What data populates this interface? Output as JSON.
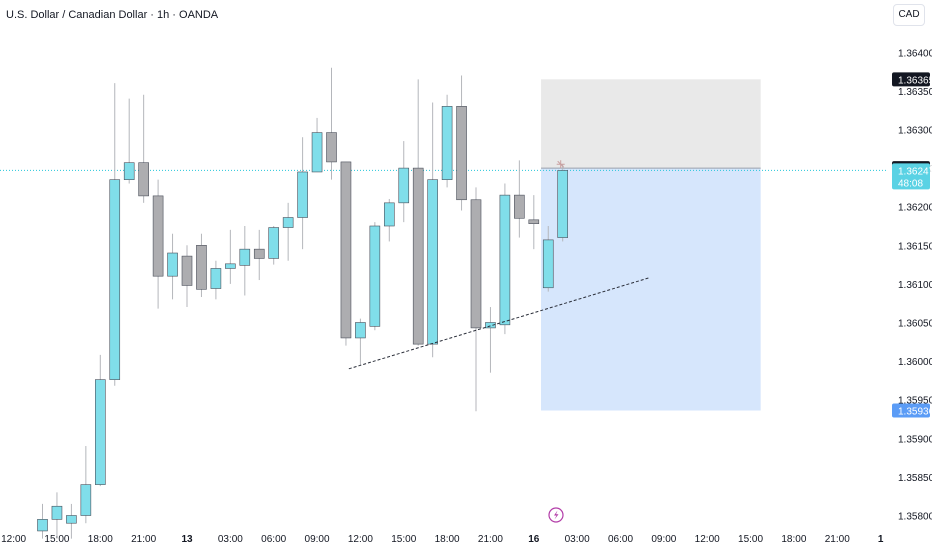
{
  "header": {
    "title": "U.S. Dollar / Canadian Dollar · 1h · OANDA",
    "currency_button": "CAD"
  },
  "chart_data": {
    "type": "candlestick",
    "ylim": [
      1.35788,
      1.36488
    ],
    "y_ticks": [
      "1.35800",
      "1.35850",
      "1.35900",
      "1.35950",
      "1.36000",
      "1.36050",
      "1.36100",
      "1.36150",
      "1.36200",
      "1.36250",
      "1.36300",
      "1.36350",
      "1.36400"
    ],
    "x_tick_labels": [
      {
        "label": "12:00",
        "slot": -2
      },
      {
        "label": "15:00",
        "slot": 1
      },
      {
        "label": "18:00",
        "slot": 4
      },
      {
        "label": "21:00",
        "slot": 7
      },
      {
        "label": "13",
        "slot": 10
      },
      {
        "label": "03:00",
        "slot": 13
      },
      {
        "label": "06:00",
        "slot": 16
      },
      {
        "label": "09:00",
        "slot": 19
      },
      {
        "label": "12:00",
        "slot": 22
      },
      {
        "label": "15:00",
        "slot": 25
      },
      {
        "label": "18:00",
        "slot": 28
      },
      {
        "label": "21:00",
        "slot": 31
      },
      {
        "label": "16",
        "slot": 34
      },
      {
        "label": "03:00",
        "slot": 37
      },
      {
        "label": "06:00",
        "slot": 40
      },
      {
        "label": "09:00",
        "slot": 43
      },
      {
        "label": "12:00",
        "slot": 46
      },
      {
        "label": "15:00",
        "slot": 49
      },
      {
        "label": "18:00",
        "slot": 52
      },
      {
        "label": "21:00",
        "slot": 55
      },
      {
        "label": "1",
        "slot": 58
      }
    ],
    "candles": [
      {
        "slot": 0,
        "o": 1.3578,
        "h": 1.35815,
        "l": 1.3577,
        "c": 1.35795
      },
      {
        "slot": 1,
        "o": 1.35795,
        "h": 1.3583,
        "l": 1.3577,
        "c": 1.35812
      },
      {
        "slot": 2,
        "o": 1.3579,
        "h": 1.35815,
        "l": 1.3577,
        "c": 1.358
      },
      {
        "slot": 3,
        "o": 1.358,
        "h": 1.3589,
        "l": 1.3579,
        "c": 1.3584
      },
      {
        "slot": 4,
        "o": 1.3584,
        "h": 1.36008,
        "l": 1.35838,
        "c": 1.35976
      },
      {
        "slot": 5,
        "o": 1.35976,
        "h": 1.3636,
        "l": 1.35968,
        "c": 1.36235
      },
      {
        "slot": 6,
        "o": 1.36235,
        "h": 1.3634,
        "l": 1.3623,
        "c": 1.36257
      },
      {
        "slot": 7,
        "o": 1.36257,
        "h": 1.36345,
        "l": 1.36205,
        "c": 1.36214
      },
      {
        "slot": 8,
        "o": 1.36214,
        "h": 1.36235,
        "l": 1.36068,
        "c": 1.3611
      },
      {
        "slot": 9,
        "o": 1.3611,
        "h": 1.36165,
        "l": 1.3608,
        "c": 1.3614
      },
      {
        "slot": 10,
        "o": 1.36136,
        "h": 1.3615,
        "l": 1.3607,
        "c": 1.36098
      },
      {
        "slot": 11,
        "o": 1.3615,
        "h": 1.36165,
        "l": 1.36083,
        "c": 1.36093
      },
      {
        "slot": 12,
        "o": 1.36094,
        "h": 1.3613,
        "l": 1.3608,
        "c": 1.3612
      },
      {
        "slot": 13,
        "o": 1.3612,
        "h": 1.3617,
        "l": 1.361,
        "c": 1.36126
      },
      {
        "slot": 14,
        "o": 1.36124,
        "h": 1.36175,
        "l": 1.36085,
        "c": 1.36145
      },
      {
        "slot": 15,
        "o": 1.36145,
        "h": 1.3617,
        "l": 1.36105,
        "c": 1.36133
      },
      {
        "slot": 16,
        "o": 1.36133,
        "h": 1.36175,
        "l": 1.36125,
        "c": 1.36173
      },
      {
        "slot": 17,
        "o": 1.36173,
        "h": 1.36205,
        "l": 1.3613,
        "c": 1.36186
      },
      {
        "slot": 18,
        "o": 1.36186,
        "h": 1.3629,
        "l": 1.36145,
        "c": 1.36245
      },
      {
        "slot": 19,
        "o": 1.36245,
        "h": 1.36315,
        "l": 1.36245,
        "c": 1.36296
      },
      {
        "slot": 20,
        "o": 1.36296,
        "h": 1.3638,
        "l": 1.36235,
        "c": 1.36258
      },
      {
        "slot": 21,
        "o": 1.36258,
        "h": 1.36258,
        "l": 1.3602,
        "c": 1.3603
      },
      {
        "slot": 22,
        "o": 1.3603,
        "h": 1.36055,
        "l": 1.35995,
        "c": 1.3605
      },
      {
        "slot": 23,
        "o": 1.36045,
        "h": 1.3618,
        "l": 1.3604,
        "c": 1.36175
      },
      {
        "slot": 24,
        "o": 1.36175,
        "h": 1.3621,
        "l": 1.36155,
        "c": 1.36205
      },
      {
        "slot": 25,
        "o": 1.36205,
        "h": 1.36285,
        "l": 1.3618,
        "c": 1.3625
      },
      {
        "slot": 26,
        "o": 1.3625,
        "h": 1.36365,
        "l": 1.3602,
        "c": 1.36022
      },
      {
        "slot": 27,
        "o": 1.36022,
        "h": 1.36335,
        "l": 1.36005,
        "c": 1.36235
      },
      {
        "slot": 28,
        "o": 1.36235,
        "h": 1.36345,
        "l": 1.36225,
        "c": 1.3633
      },
      {
        "slot": 29,
        "o": 1.3633,
        "h": 1.3637,
        "l": 1.36195,
        "c": 1.36209
      },
      {
        "slot": 30,
        "o": 1.36209,
        "h": 1.36225,
        "l": 1.35935,
        "c": 1.36043
      },
      {
        "slot": 31,
        "o": 1.36043,
        "h": 1.3607,
        "l": 1.35985,
        "c": 1.3605
      },
      {
        "slot": 32,
        "o": 1.36047,
        "h": 1.3623,
        "l": 1.36035,
        "c": 1.36215
      },
      {
        "slot": 33,
        "o": 1.36215,
        "h": 1.3626,
        "l": 1.3616,
        "c": 1.36185
      },
      {
        "slot": 34,
        "o": 1.36183,
        "h": 1.36215,
        "l": 1.36145,
        "c": 1.36178
      },
      {
        "slot": 35,
        "o": 1.36095,
        "h": 1.36175,
        "l": 1.3609,
        "c": 1.36157
      },
      {
        "slot": 36,
        "o": 1.3616,
        "h": 1.36255,
        "l": 1.36155,
        "c": 1.36247
      }
    ],
    "trendline": {
      "x1_slot": 21.2,
      "y1": 1.3599,
      "x2_slot": 42.0,
      "y2": 1.36108
    },
    "position": {
      "start_slot": 34.5,
      "end_slot": 49.7,
      "stop_level": 1.36365,
      "entry_level": 1.3625,
      "target_level": 1.35936
    },
    "current_price": 1.36247,
    "price_labels": {
      "stop": "1.36365",
      "entry": "1.36250",
      "current": "1.36247",
      "countdown": "48:08",
      "target": "1.35936"
    },
    "colors": {
      "up": "#80deea",
      "down": "#adadb0",
      "stop_zone": "#e9e9e9",
      "target_zone": "#d6e6fc",
      "price_line": "#26c6da",
      "label_dark": "#131722",
      "label_current": "#5ad2e4",
      "label_target": "#5b9cf6"
    }
  }
}
